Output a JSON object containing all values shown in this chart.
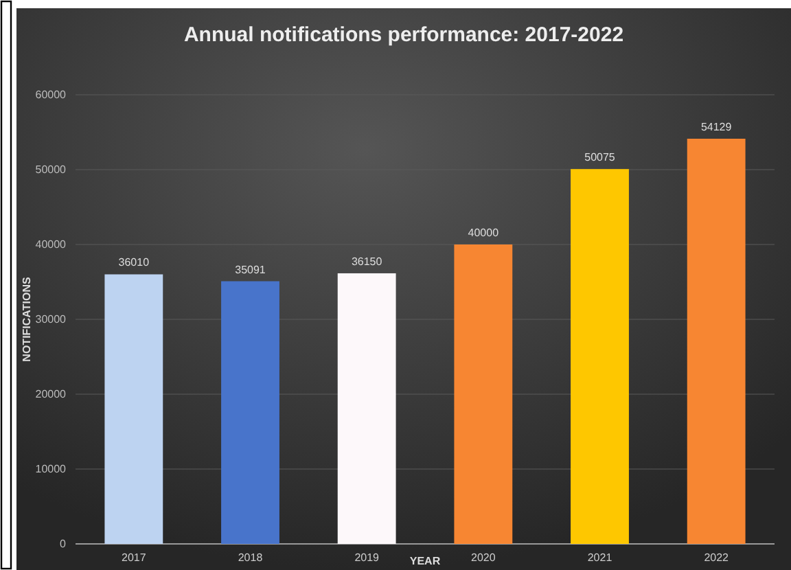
{
  "chart_data": {
    "type": "bar",
    "title": "Annual notifications performance: 2017-2022",
    "xlabel": "YEAR",
    "ylabel": "NOTIFICATIONS",
    "categories": [
      "2017",
      "2018",
      "2019",
      "2020",
      "2021",
      "2022"
    ],
    "values": [
      36010,
      35091,
      36150,
      40000,
      50075,
      54129
    ],
    "colors": [
      "#bdd3f1",
      "#4874cb",
      "#fdf8fa",
      "#f78632",
      "#fec700",
      "#f78632"
    ],
    "ylim": [
      0,
      60000
    ],
    "yticks": [
      0,
      10000,
      20000,
      30000,
      40000,
      50000,
      60000
    ],
    "grid": "y",
    "data_labels": true
  }
}
